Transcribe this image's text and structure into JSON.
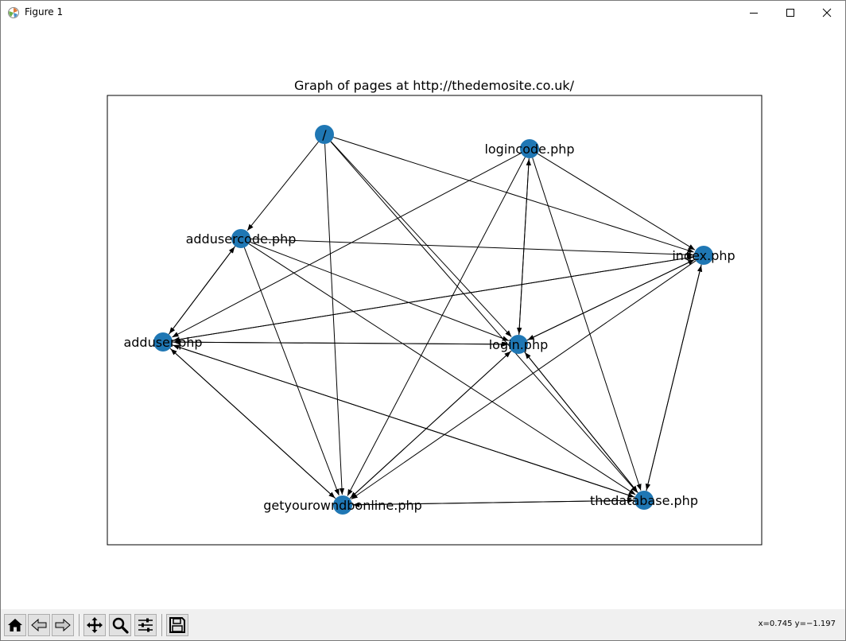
{
  "window": {
    "title": "Figure 1",
    "buttons": [
      "minimize",
      "maximize",
      "close"
    ]
  },
  "figure": {
    "title": "Graph of pages at http://thedemosite.co.uk/",
    "nodes": [
      {
        "id": "root",
        "label": "/"
      },
      {
        "id": "logincode",
        "label": "logincode.php"
      },
      {
        "id": "addusercode",
        "label": "addusercode.php"
      },
      {
        "id": "index",
        "label": "index.php"
      },
      {
        "id": "adduser",
        "label": "adduser.php"
      },
      {
        "id": "login",
        "label": "login.php"
      },
      {
        "id": "thedatabase",
        "label": "thedatabase.php"
      },
      {
        "id": "getyourowndb",
        "label": "getyourowndbonline.php"
      }
    ],
    "node_color": "#1f77b4",
    "edges": [
      [
        "root",
        "addusercode"
      ],
      [
        "root",
        "index"
      ],
      [
        "root",
        "getyourowndb"
      ],
      [
        "root",
        "login"
      ],
      [
        "root",
        "thedatabase"
      ],
      [
        "logincode",
        "adduser"
      ],
      [
        "logincode",
        "login"
      ],
      [
        "login",
        "logincode"
      ],
      [
        "logincode",
        "index"
      ],
      [
        "logincode",
        "getyourowndb"
      ],
      [
        "logincode",
        "thedatabase"
      ],
      [
        "addusercode",
        "adduser"
      ],
      [
        "adduser",
        "addusercode"
      ],
      [
        "addusercode",
        "index"
      ],
      [
        "addusercode",
        "login"
      ],
      [
        "addusercode",
        "getyourowndb"
      ],
      [
        "addusercode",
        "thedatabase"
      ],
      [
        "index",
        "adduser"
      ],
      [
        "adduser",
        "index"
      ],
      [
        "index",
        "login"
      ],
      [
        "login",
        "index"
      ],
      [
        "index",
        "getyourowndb"
      ],
      [
        "index",
        "thedatabase"
      ],
      [
        "thedatabase",
        "index"
      ],
      [
        "adduser",
        "login"
      ],
      [
        "login",
        "adduser"
      ],
      [
        "adduser",
        "getyourowndb"
      ],
      [
        "getyourowndb",
        "adduser"
      ],
      [
        "adduser",
        "thedatabase"
      ],
      [
        "thedatabase",
        "adduser"
      ],
      [
        "login",
        "getyourowndb"
      ],
      [
        "getyourowndb",
        "login"
      ],
      [
        "login",
        "thedatabase"
      ],
      [
        "thedatabase",
        "login"
      ],
      [
        "getyourowndb",
        "thedatabase"
      ],
      [
        "thedatabase",
        "getyourowndb"
      ]
    ]
  },
  "toolbar": {
    "buttons": [
      "home-icon",
      "back-icon",
      "forward-icon",
      "pan-icon",
      "zoom-icon",
      "configure-subplots-icon",
      "save-icon"
    ]
  },
  "status": {
    "coords": "x=0.745 y=−1.197"
  }
}
